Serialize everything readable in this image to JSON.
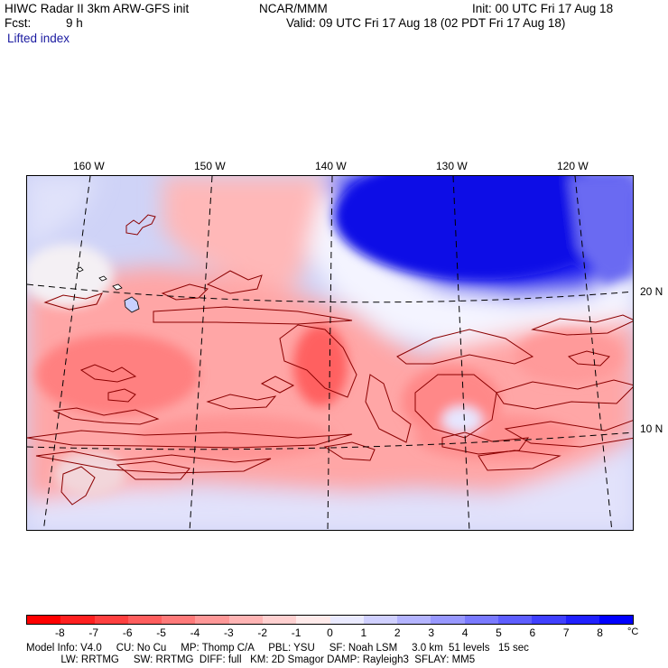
{
  "header": {
    "title": "HIWC Radar II 3km ARW-GFS init",
    "org": "NCAR/MMM",
    "init": "Init: 00 UTC Fri 17 Aug 18",
    "fcst_label": "Fcst:",
    "fcst_value": "9 h",
    "valid": "Valid: 09 UTC Fri 17 Aug 18 (02 PDT Fri 17 Aug 18)",
    "field": "Lifted index"
  },
  "map": {
    "lon_labels": [
      "160 W",
      "150 W",
      "140 W",
      "130 W",
      "120 W"
    ],
    "lat_labels": [
      "20 N",
      "10 N"
    ]
  },
  "colorbar": {
    "ticks": [
      "-8",
      "-7",
      "-6",
      "-5",
      "-4",
      "-3",
      "-2",
      "-1",
      "0",
      "1",
      "2",
      "3",
      "4",
      "5",
      "6",
      "7",
      "8"
    ],
    "unit": "°C",
    "colors": [
      "#ff0000",
      "#ff2020",
      "#ff4040",
      "#ff5e5e",
      "#ff7a7a",
      "#ff9898",
      "#ffb4b4",
      "#ffd0d0",
      "#ffeaea",
      "#eaeaff",
      "#d0d0ff",
      "#b4b4ff",
      "#9898ff",
      "#7a7aff",
      "#5e5eff",
      "#4040ff",
      "#2020ff",
      "#0000ff"
    ]
  },
  "footer": {
    "line1": "Model Info: V4.0     CU: No Cu     MP: Thomp C/A     PBL: YSU     SF: Noah LSM     3.0 km  51 levels   15 sec",
    "line2": "            LW: RRTMG     SW: RRTMG  DIFF: full   KM: 2D Smagor DAMP: Rayleigh3  SFLAY: MM5"
  }
}
